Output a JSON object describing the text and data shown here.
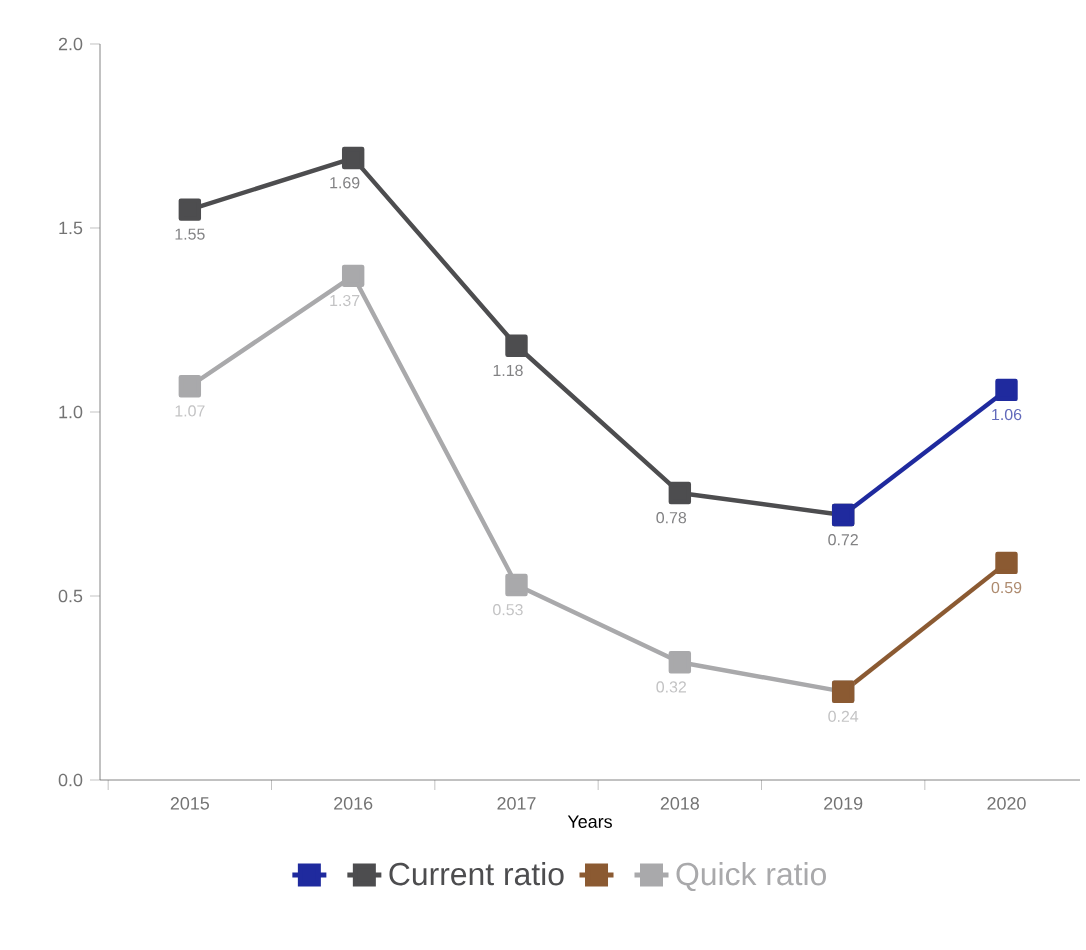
{
  "chart_data": {
    "type": "line",
    "xlabel": "Years",
    "categories": [
      "2015",
      "2016",
      "2017",
      "2018",
      "2019",
      "2020"
    ],
    "series": [
      {
        "name": "Current ratio",
        "color": "#4d4d4f",
        "values": [
          1.55,
          1.69,
          1.18,
          0.78,
          0.72,
          null
        ],
        "value_labels": [
          "1.55",
          "1.69",
          "1.18",
          "0.78",
          "0.72",
          null
        ]
      },
      {
        "color": "#1f2a9e",
        "values": [
          null,
          null,
          null,
          null,
          0.72,
          1.06
        ],
        "value_labels": [
          null,
          null,
          null,
          null,
          null,
          "1.06"
        ]
      },
      {
        "name": "Quick ratio",
        "color": "#a9a9ab",
        "values": [
          1.07,
          1.37,
          0.53,
          0.32,
          0.24,
          null
        ],
        "value_labels": [
          "1.07",
          "1.37",
          "0.53",
          "0.32",
          "0.24",
          null
        ]
      },
      {
        "color": "#8b5a32",
        "values": [
          null,
          null,
          null,
          null,
          0.24,
          0.59
        ],
        "value_labels": [
          null,
          null,
          null,
          null,
          null,
          "0.59"
        ]
      }
    ],
    "ylim": [
      0,
      2
    ],
    "yticks": [
      {
        "value": 0,
        "label": "0.0"
      },
      {
        "value": 0.5,
        "label": "0.5"
      },
      {
        "value": 1,
        "label": "1.0"
      },
      {
        "value": 1.5,
        "label": "1.5"
      },
      {
        "value": 2,
        "label": "2.0"
      }
    ],
    "marker": "square",
    "line_style": "solid",
    "legend": "bottom"
  }
}
